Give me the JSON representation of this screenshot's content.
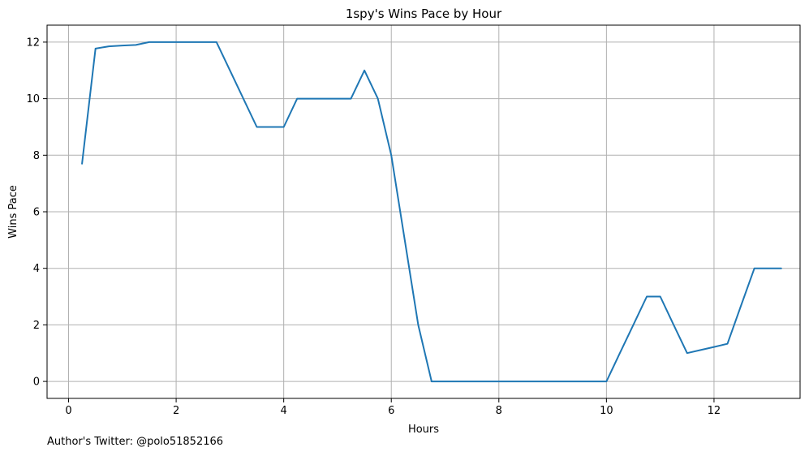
{
  "footnote": "Author's Twitter: @polo51852166",
  "chart_data": {
    "type": "line",
    "title": "1spy's Wins Pace by Hour",
    "xlabel": "Hours",
    "ylabel": "Wins Pace",
    "xlim": [
      -0.4,
      13.6
    ],
    "ylim": [
      -0.6,
      12.6
    ],
    "xticks": [
      0,
      2,
      4,
      6,
      8,
      10,
      12
    ],
    "yticks": [
      0,
      2,
      4,
      6,
      8,
      10,
      12
    ],
    "grid": true,
    "line_color": "#1f77b4",
    "series": [
      {
        "x": [
          0.25,
          0.5,
          0.75,
          1.0,
          1.25,
          1.5,
          1.75,
          2.0,
          2.25,
          2.5,
          2.75,
          3.0,
          3.25,
          3.5,
          3.75,
          4.0,
          4.25,
          4.5,
          4.75,
          5.0,
          5.25,
          5.5,
          5.75,
          6.0,
          6.25,
          6.5,
          6.75,
          7.0,
          7.25,
          7.5,
          7.75,
          8.0,
          8.25,
          8.5,
          8.75,
          9.0,
          9.25,
          9.5,
          9.75,
          10.0,
          10.25,
          10.5,
          10.75,
          11.0,
          11.25,
          11.5,
          11.75,
          12.0,
          12.25,
          12.5,
          12.75,
          13.0,
          13.25
        ],
        "y": [
          7.7,
          11.77,
          11.85,
          11.88,
          11.9,
          12.0,
          12.0,
          12.0,
          12.0,
          12.0,
          12.0,
          11.0,
          10.0,
          9.0,
          9.0,
          9.0,
          10.0,
          10.0,
          10.0,
          10.0,
          10.0,
          11.0,
          10.0,
          8.0,
          5.0,
          2.0,
          0.0,
          0.0,
          0.0,
          0.0,
          0.0,
          0.0,
          0.0,
          0.0,
          0.0,
          0.0,
          0.0,
          0.0,
          0.0,
          0.0,
          1.0,
          2.0,
          3.0,
          3.0,
          2.0,
          1.0,
          1.11,
          1.22,
          1.33,
          2.67,
          4.0,
          4.0,
          4.0
        ]
      }
    ]
  }
}
